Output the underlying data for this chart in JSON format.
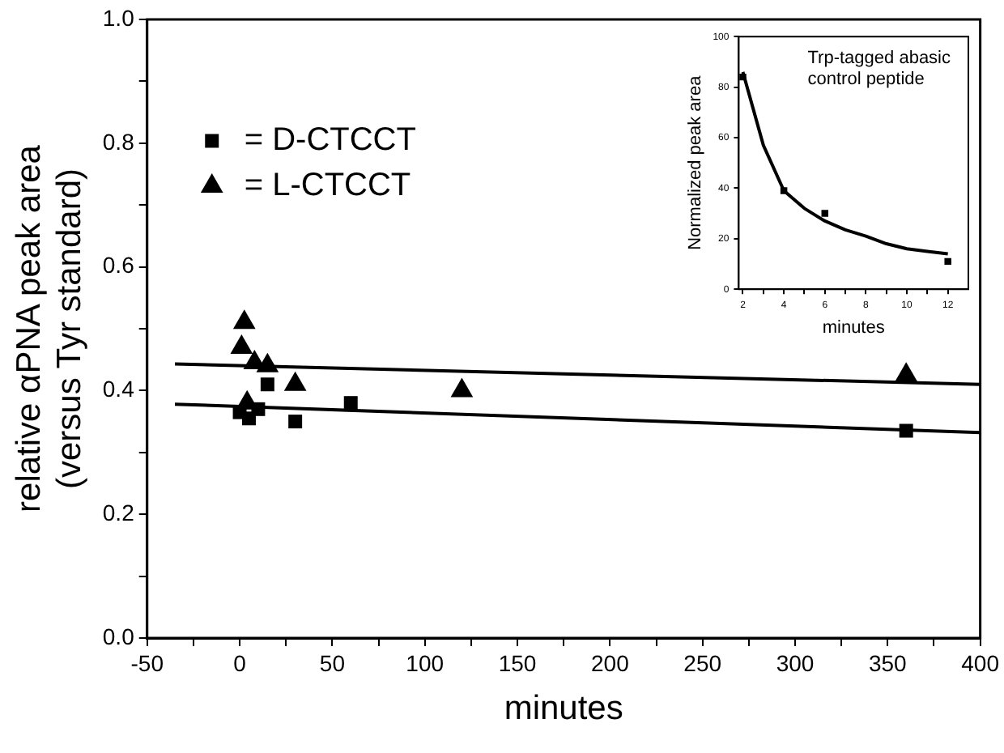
{
  "chart_data": [
    {
      "type": "scatter",
      "xlabel": "minutes",
      "ylabel": "relative αPNA peak area\n(versus Tyr standard)",
      "xlim": [
        -50,
        400
      ],
      "xticks": [
        -50,
        {
          "value": -25,
          "label": null
        },
        0,
        {
          "value": 25,
          "label": null
        },
        50,
        {
          "value": 75,
          "label": null
        },
        100,
        {
          "value": 125,
          "label": null
        },
        150,
        {
          "value": 175,
          "label": null
        },
        200,
        {
          "value": 225,
          "label": null
        },
        250,
        {
          "value": 275,
          "label": null
        },
        300,
        {
          "value": 325,
          "label": null
        },
        350,
        {
          "value": 375,
          "label": null
        },
        400
      ],
      "ylim": [
        0,
        1
      ],
      "yticks": [
        {
          "value": 0,
          "label": "0.0"
        },
        {
          "value": 0.1,
          "label": null
        },
        0.2,
        {
          "value": 0.3,
          "label": null
        },
        0.4,
        {
          "value": 0.5,
          "label": null
        },
        0.6,
        {
          "value": 0.7,
          "label": null
        },
        0.8,
        {
          "value": 0.9,
          "label": null
        },
        {
          "value": 1,
          "label": "1.0"
        }
      ],
      "grid": false,
      "legend": "top left",
      "series": [
        {
          "name": "= D-CTCCT",
          "marker": "square",
          "color": "#000000",
          "x": [
            0,
            5,
            10,
            15,
            30,
            60,
            360
          ],
          "values": [
            0.365,
            0.355,
            0.37,
            0.41,
            0.35,
            0.38,
            0.335
          ]
        },
        {
          "name": "= L-CTCCT",
          "marker": "triangle",
          "color": "#000000",
          "x": [
            1,
            2.5,
            4,
            8,
            15,
            30,
            120,
            360
          ],
          "values": [
            0.47,
            0.51,
            0.38,
            0.445,
            0.44,
            0.41,
            0.4,
            0.425
          ]
        },
        {
          "type": "line",
          "marker": "none",
          "color": "#000000",
          "x": [
            -35,
            400
          ],
          "values": [
            0.443,
            0.41
          ]
        },
        {
          "type": "line",
          "marker": "none",
          "color": "#000000",
          "x": [
            -35,
            400
          ],
          "values": [
            0.378,
            0.332
          ]
        }
      ]
    },
    {
      "type": "scatter",
      "xlabel": "minutes",
      "ylabel": "Normalized peak area",
      "annotations": [
        "Trp-tagged abasic control peptide"
      ],
      "xlim": [
        1.8,
        13
      ],
      "xticks": [
        2,
        {
          "value": 3,
          "label": null
        },
        4,
        {
          "value": 5,
          "label": null
        },
        6,
        {
          "value": 7,
          "label": null
        },
        8,
        {
          "value": 9,
          "label": null
        },
        10,
        {
          "value": 11,
          "label": null
        },
        12
      ],
      "ylim": [
        0,
        100
      ],
      "yticks": [
        0,
        20,
        40,
        60,
        80,
        100
      ],
      "grid": false,
      "series": [
        {
          "marker": "square",
          "color": "#000000",
          "x": [
            2,
            4,
            6,
            12
          ],
          "values": [
            84,
            39,
            30,
            11
          ]
        },
        {
          "type": "line",
          "marker": "none",
          "color": "#000000",
          "x": [
            2,
            3,
            4,
            5,
            6,
            7,
            8,
            9,
            10,
            11,
            12
          ],
          "values": [
            86,
            57,
            39,
            32,
            27,
            23.5,
            21,
            18,
            16,
            15,
            14
          ]
        }
      ]
    }
  ]
}
